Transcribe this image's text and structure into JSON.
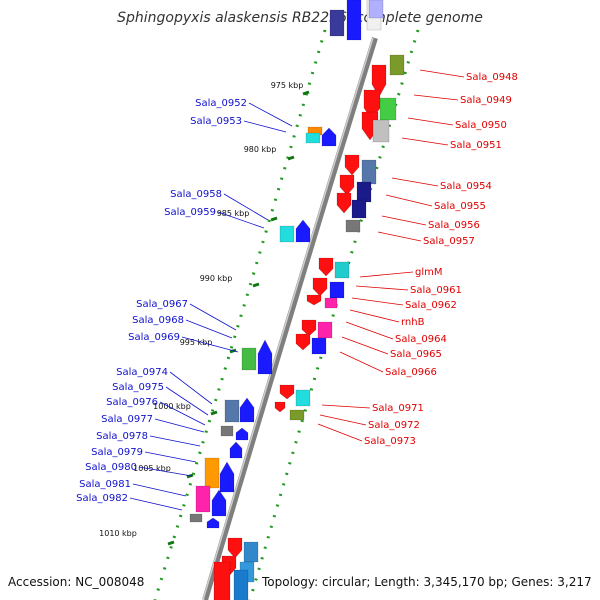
{
  "title": "Sphingopyxis alaskensis RB2256, complete genome",
  "accession": "Accession: NC_008048",
  "topology": "Topology: circular; Length: 3,345,170 bp; Genes: 3,217",
  "scale_ticks": [
    "975 kbp",
    "980 kbp",
    "985 kbp",
    "990 kbp",
    "995 kbp",
    "1000 kbp",
    "1005 kbp",
    "1010 kbp"
  ],
  "forward_labels": [
    "Sala_0948",
    "Sala_0949",
    "Sala_0950",
    "Sala_0951",
    "Sala_0954",
    "Sala_0955",
    "Sala_0956",
    "Sala_0957",
    "glmM",
    "Sala_0961",
    "Sala_0962",
    "rnhB",
    "Sala_0964",
    "Sala_0965",
    "Sala_0966",
    "Sala_0971",
    "Sala_0972",
    "Sala_0973"
  ],
  "reverse_labels": [
    "Sala_0952",
    "Sala_0953",
    "Sala_0958",
    "Sala_0959",
    "Sala_0967",
    "Sala_0968",
    "Sala_0969",
    "Sala_0974",
    "Sala_0975",
    "Sala_0976",
    "Sala_0977",
    "Sala_0978",
    "Sala_0979",
    "Sala_0980",
    "Sala_0981",
    "Sala_0982"
  ],
  "colors": {
    "forward_label": "#e00000",
    "reverse_label": "#1010cc",
    "backbone": "#8a8a8a",
    "dots": "#229922"
  }
}
